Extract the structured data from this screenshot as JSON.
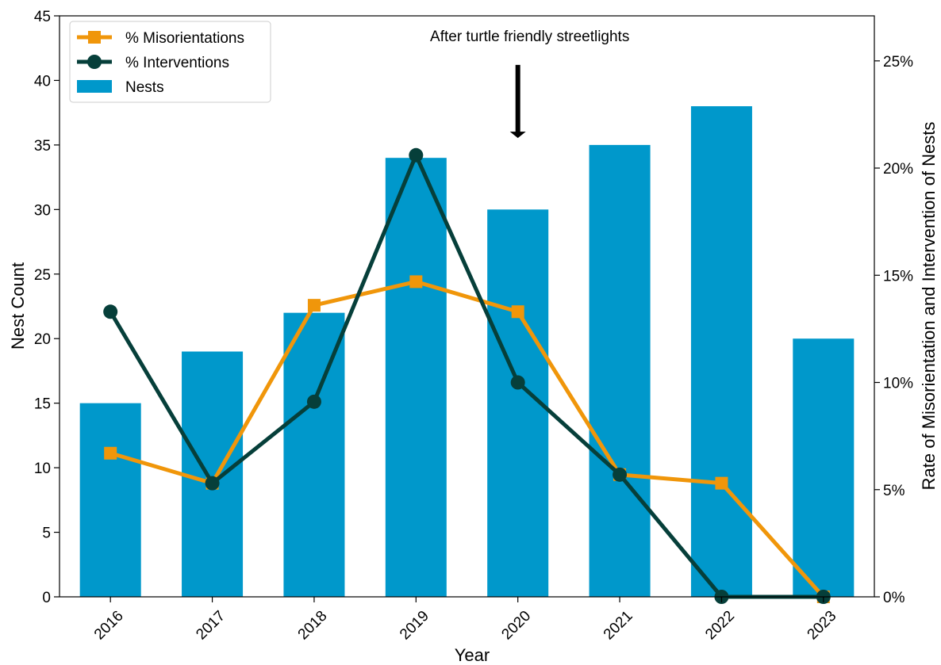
{
  "chart_data": {
    "type": "bar",
    "categories": [
      "2016",
      "2017",
      "2018",
      "2019",
      "2020",
      "2021",
      "2022",
      "2023"
    ],
    "xlabel": "Year",
    "ylabel": "Nest Count",
    "ylabel_right": "Rate of Misorientation and Intervention of Nests",
    "ylim": [
      0,
      45
    ],
    "yticks": [
      0,
      5,
      10,
      15,
      20,
      25,
      30,
      35,
      40,
      45
    ],
    "ylim_right": [
      0,
      27.1
    ],
    "yticks_right": [
      0,
      5,
      10,
      15,
      20,
      25
    ],
    "yticks_right_labels": [
      "0%",
      "5%",
      "10%",
      "15%",
      "20%",
      "25%"
    ],
    "series": [
      {
        "name": "Nests",
        "kind": "bar",
        "axis": "left",
        "color": "#0098cb",
        "values": [
          15,
          19,
          22,
          34,
          30,
          35,
          38,
          20
        ]
      },
      {
        "name": "% Misorientations",
        "kind": "line",
        "axis": "right",
        "marker": "square",
        "color": "#f0960a",
        "values": [
          6.7,
          5.3,
          13.6,
          14.7,
          13.3,
          5.7,
          5.3,
          0
        ]
      },
      {
        "name": "% Interventions",
        "kind": "line",
        "axis": "right",
        "marker": "circle",
        "color": "#063f3a",
        "values": [
          13.3,
          5.3,
          9.1,
          20.6,
          10.0,
          5.7,
          0,
          0
        ]
      }
    ],
    "annotation": {
      "text": "After turtle friendly streetlights",
      "category": "2020",
      "arrow_from_y": 41.2,
      "arrow_to_y": 35.6
    },
    "legend_position": "top-left",
    "grid": false
  }
}
